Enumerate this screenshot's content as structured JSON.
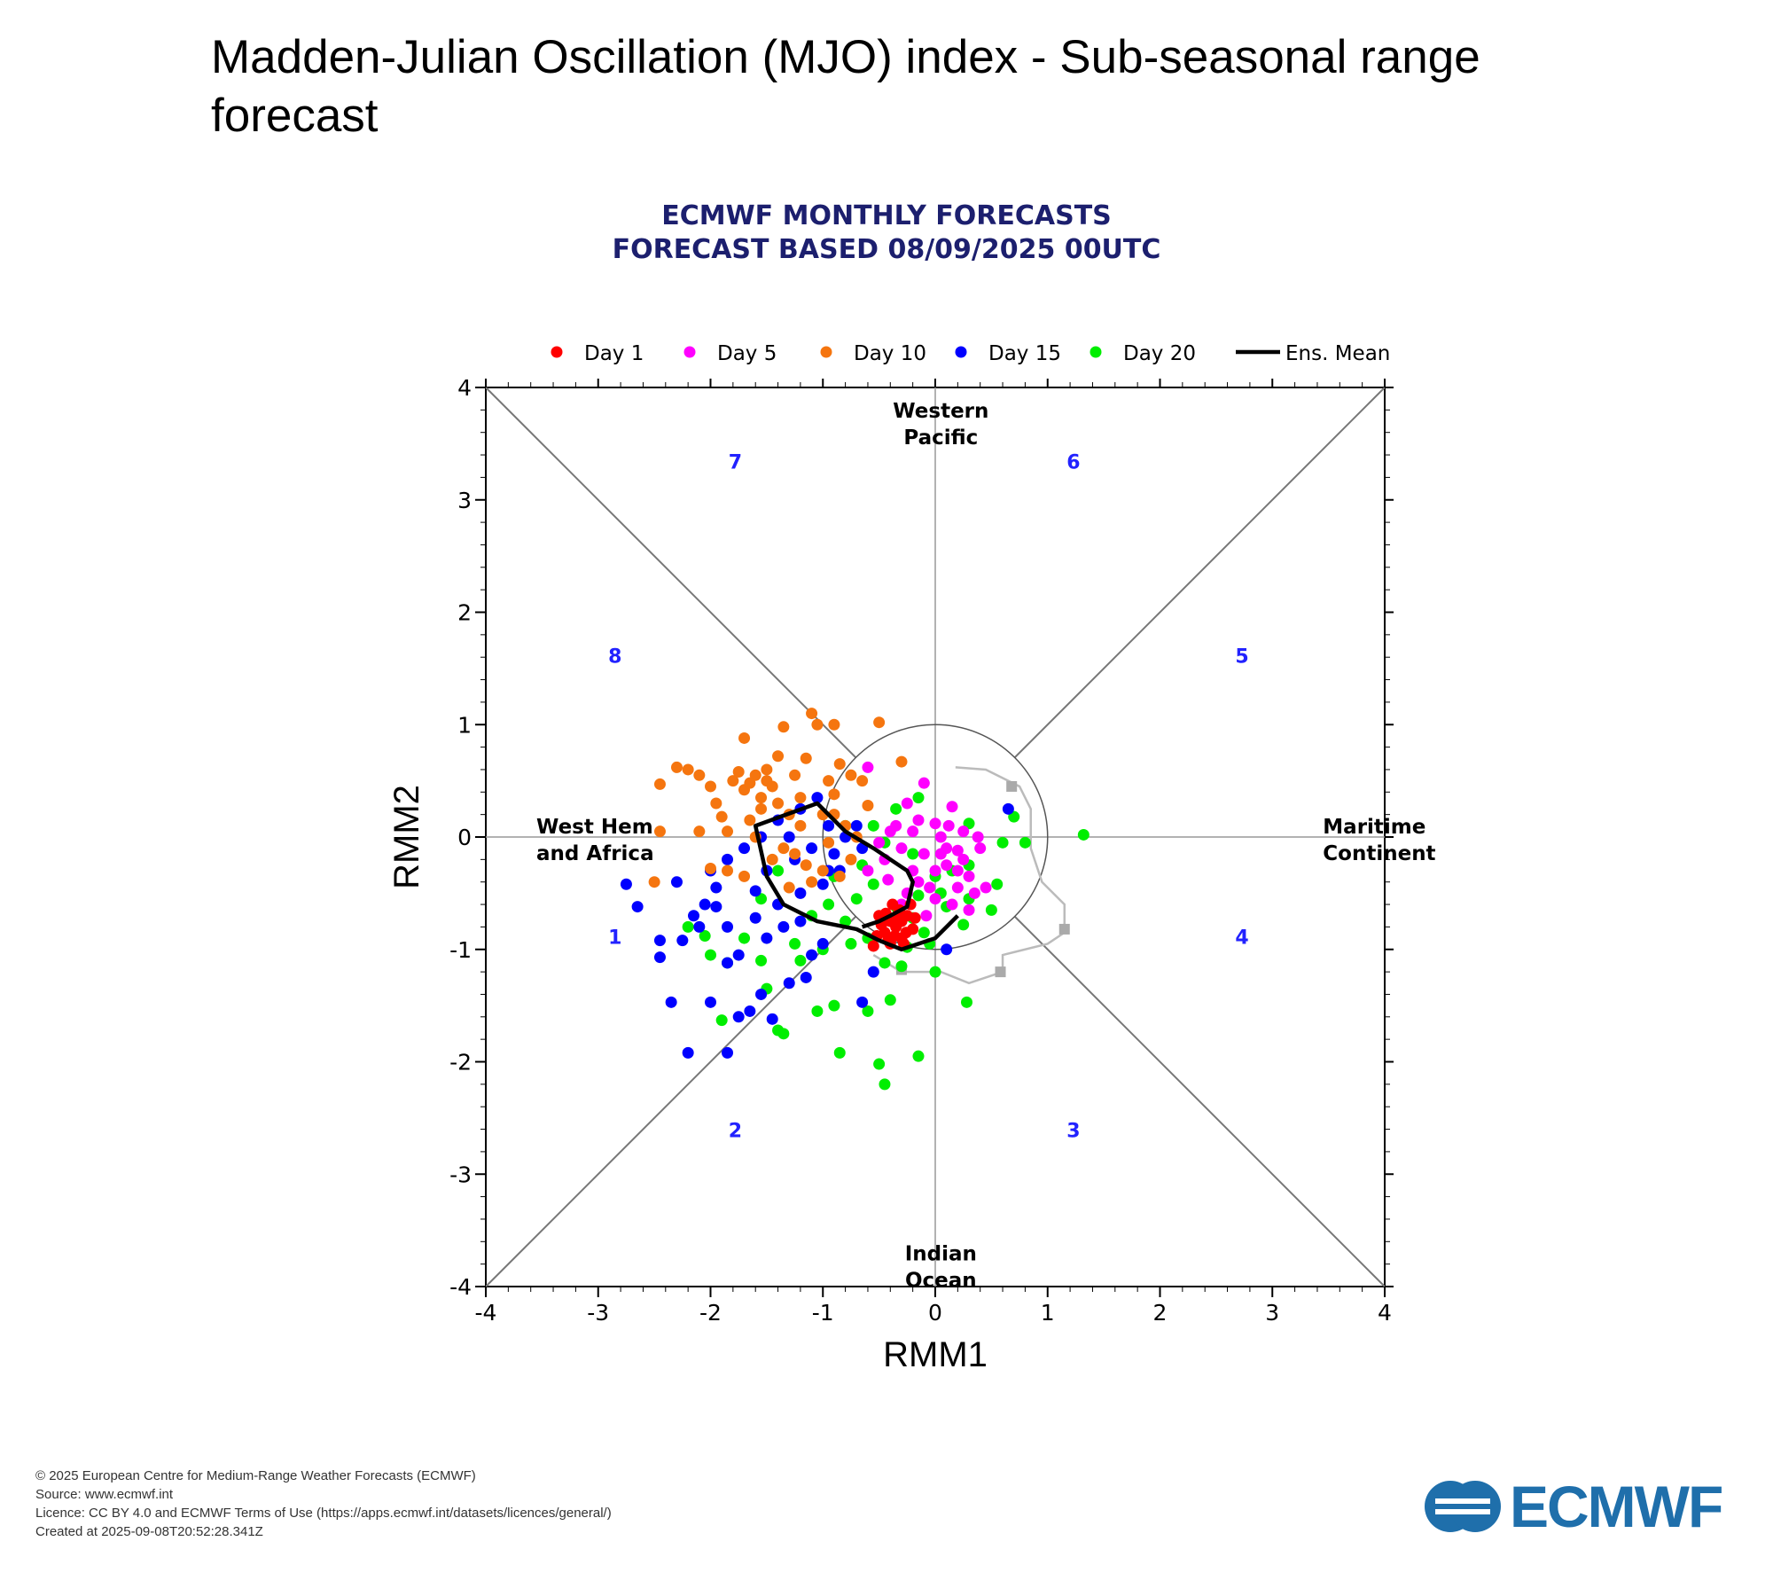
{
  "page": {
    "title": "Madden-Julian Oscillation (MJO) index - Sub-seasonal range forecast"
  },
  "footer": {
    "copyright": "© 2025 European Centre for Medium-Range Weather Forecasts (ECMWF)",
    "source": "Source: www.ecmwf.int",
    "licence": "Licence: CC BY 4.0 and ECMWF Terms of Use (https://apps.ecmwf.int/datasets/licences/general/)",
    "created": "Created at 2025-09-08T20:52:28.341Z"
  },
  "logo": {
    "text": "ECMWF",
    "color": "#1f6fab"
  },
  "chart_data": {
    "type": "scatter",
    "title": "ECMWF MONTHLY FORECASTS",
    "subtitle": "FORECAST  BASED 08/09/2025 00UTC",
    "xlabel": "RMM1",
    "ylabel": "RMM2",
    "xlim": [
      -4,
      4
    ],
    "ylim": [
      -4,
      4
    ],
    "xticks": [
      "-4",
      "-3",
      "-2",
      "-1",
      "0",
      "1",
      "2",
      "3",
      "4"
    ],
    "yticks": [
      "-4",
      "-3",
      "-2",
      "-1",
      "0",
      "1",
      "2",
      "3",
      "4"
    ],
    "legend_position": "top",
    "region_labels": [
      {
        "lines": [
          "Western",
          "Pacific"
        ],
        "x": 0.05,
        "y": 3.7
      },
      {
        "lines": [
          "Indian",
          "Ocean"
        ],
        "x": 0.05,
        "y": -3.8
      },
      {
        "lines": [
          "West Hem.",
          "and Africa"
        ],
        "x": -3.55,
        "y": 0.0
      },
      {
        "lines": [
          "Maritime",
          "Continent"
        ],
        "x": 3.45,
        "y": 0.0
      }
    ],
    "phase_labels": [
      {
        "label": "1",
        "x": -2.85,
        "y": -0.88
      },
      {
        "label": "2",
        "x": -1.78,
        "y": -2.6
      },
      {
        "label": "3",
        "x": 1.23,
        "y": -2.6
      },
      {
        "label": "4",
        "x": 2.73,
        "y": -0.88
      },
      {
        "label": "5",
        "x": 2.73,
        "y": 1.62
      },
      {
        "label": "6",
        "x": 1.23,
        "y": 3.35
      },
      {
        "label": "7",
        "x": -1.78,
        "y": 3.35
      },
      {
        "label": "8",
        "x": -2.85,
        "y": 1.62
      }
    ],
    "series": [
      {
        "name": "Day 1",
        "color": "#ff0000",
        "points": [
          [
            -0.55,
            -0.97
          ],
          [
            -0.45,
            -0.85
          ],
          [
            -0.4,
            -0.75
          ],
          [
            -0.35,
            -0.8
          ],
          [
            -0.3,
            -0.9
          ],
          [
            -0.25,
            -0.7
          ],
          [
            -0.2,
            -0.82
          ],
          [
            -0.5,
            -0.7
          ],
          [
            -0.42,
            -0.92
          ],
          [
            -0.32,
            -0.65
          ],
          [
            -0.28,
            -0.95
          ],
          [
            -0.38,
            -0.6
          ],
          [
            -0.22,
            -0.6
          ],
          [
            -0.48,
            -0.78
          ],
          [
            -0.36,
            -0.88
          ],
          [
            -0.3,
            -0.75
          ],
          [
            -0.44,
            -0.68
          ],
          [
            -0.26,
            -0.85
          ],
          [
            -0.34,
            -0.7
          ],
          [
            -0.4,
            -0.95
          ],
          [
            -0.18,
            -0.72
          ],
          [
            -0.52,
            -0.88
          ]
        ]
      },
      {
        "name": "Day 5",
        "color": "#ff00ff",
        "points": [
          [
            -0.6,
            0.62
          ],
          [
            -0.1,
            0.48
          ],
          [
            0.15,
            0.27
          ],
          [
            -0.25,
            0.3
          ],
          [
            0.0,
            0.12
          ],
          [
            -0.4,
            0.05
          ],
          [
            0.1,
            -0.1
          ],
          [
            0.25,
            -0.2
          ],
          [
            -0.2,
            -0.3
          ],
          [
            -0.05,
            -0.45
          ],
          [
            0.2,
            -0.45
          ],
          [
            0.35,
            -0.5
          ],
          [
            -0.3,
            -0.1
          ],
          [
            0.05,
            0.0
          ],
          [
            -0.15,
            0.15
          ],
          [
            0.4,
            -0.1
          ],
          [
            0.3,
            -0.35
          ],
          [
            -0.45,
            -0.2
          ],
          [
            -0.35,
            0.1
          ],
          [
            0.15,
            -0.6
          ],
          [
            -0.1,
            -0.15
          ],
          [
            0.0,
            -0.3
          ],
          [
            0.25,
            0.05
          ],
          [
            -0.5,
            -0.05
          ],
          [
            -0.25,
            -0.5
          ],
          [
            0.1,
            -0.25
          ],
          [
            -0.6,
            -0.3
          ],
          [
            0.45,
            -0.45
          ],
          [
            0.2,
            -0.12
          ],
          [
            0.0,
            -0.55
          ],
          [
            -0.2,
            0.05
          ],
          [
            0.38,
            0.0
          ],
          [
            -0.42,
            -0.38
          ],
          [
            0.12,
            0.1
          ],
          [
            -0.08,
            -0.7
          ],
          [
            0.3,
            -0.65
          ],
          [
            -0.3,
            -0.6
          ],
          [
            0.05,
            -0.15
          ],
          [
            -0.15,
            -0.4
          ],
          [
            0.2,
            -0.3
          ]
        ]
      },
      {
        "name": "Day 10",
        "color": "#f5750f",
        "points": [
          [
            -1.1,
            1.1
          ],
          [
            -1.05,
            1.0
          ],
          [
            -0.9,
            1.0
          ],
          [
            -0.5,
            1.02
          ],
          [
            -0.3,
            0.67
          ],
          [
            -1.7,
            0.88
          ],
          [
            -1.6,
            0.55
          ],
          [
            -1.5,
            0.5
          ],
          [
            -1.35,
            0.98
          ],
          [
            -1.15,
            0.7
          ],
          [
            -2.1,
            0.55
          ],
          [
            -2.3,
            0.62
          ],
          [
            -2.45,
            0.47
          ],
          [
            -2.2,
            0.6
          ],
          [
            -1.8,
            0.5
          ],
          [
            -1.7,
            0.42
          ],
          [
            -1.55,
            0.35
          ],
          [
            -1.45,
            0.45
          ],
          [
            -1.4,
            0.3
          ],
          [
            -1.3,
            0.2
          ],
          [
            -1.2,
            0.1
          ],
          [
            -1.0,
            0.2
          ],
          [
            -0.8,
            0.1
          ],
          [
            -0.9,
            0.38
          ],
          [
            -0.95,
            0.5
          ],
          [
            -0.75,
            0.55
          ],
          [
            -0.85,
            0.65
          ],
          [
            -2.45,
            0.05
          ],
          [
            -2.1,
            0.05
          ],
          [
            -1.85,
            0.05
          ],
          [
            -1.6,
            0.0
          ],
          [
            -1.35,
            -0.1
          ],
          [
            -1.15,
            -0.25
          ],
          [
            -0.95,
            -0.05
          ],
          [
            -0.7,
            0.0
          ],
          [
            -1.25,
            -0.15
          ],
          [
            -1.0,
            -0.3
          ],
          [
            -1.45,
            -0.2
          ],
          [
            -1.85,
            -0.3
          ],
          [
            -2.0,
            -0.28
          ],
          [
            -2.5,
            -0.4
          ],
          [
            -1.7,
            -0.35
          ],
          [
            -1.3,
            -0.45
          ],
          [
            -1.1,
            -0.4
          ],
          [
            -0.85,
            -0.35
          ],
          [
            -0.75,
            -0.2
          ],
          [
            -1.65,
            0.15
          ],
          [
            -1.55,
            0.25
          ],
          [
            -1.95,
            0.3
          ],
          [
            -1.2,
            0.35
          ],
          [
            -0.6,
            0.28
          ],
          [
            -2.0,
            0.45
          ],
          [
            -1.75,
            0.58
          ],
          [
            -1.4,
            0.72
          ],
          [
            -1.25,
            0.55
          ],
          [
            -0.65,
            0.5
          ],
          [
            -0.9,
            0.2
          ],
          [
            -1.5,
            0.6
          ],
          [
            -1.65,
            0.48
          ],
          [
            -1.9,
            0.18
          ]
        ]
      },
      {
        "name": "Day 15",
        "color": "#0000ff",
        "points": [
          [
            -2.75,
            -0.42
          ],
          [
            -2.65,
            -0.62
          ],
          [
            -2.45,
            -0.92
          ],
          [
            -2.45,
            -1.07
          ],
          [
            -2.3,
            -0.4
          ],
          [
            -2.25,
            -0.92
          ],
          [
            -2.35,
            -1.47
          ],
          [
            -2.2,
            -1.92
          ],
          [
            -2.1,
            -0.8
          ],
          [
            -2.0,
            -1.47
          ],
          [
            -1.95,
            -0.62
          ],
          [
            -1.85,
            -1.92
          ],
          [
            -1.75,
            -1.6
          ],
          [
            -1.65,
            -1.55
          ],
          [
            -1.55,
            -1.4
          ],
          [
            -1.45,
            -1.62
          ],
          [
            -1.3,
            -1.3
          ],
          [
            -1.15,
            -1.25
          ],
          [
            -1.1,
            -1.05
          ],
          [
            -1.0,
            -0.95
          ],
          [
            -0.65,
            -1.47
          ],
          [
            -0.55,
            -1.2
          ],
          [
            -1.85,
            -1.12
          ],
          [
            -1.75,
            -1.05
          ],
          [
            -1.5,
            -0.9
          ],
          [
            -1.35,
            -0.8
          ],
          [
            -1.2,
            -0.75
          ],
          [
            -1.85,
            -0.8
          ],
          [
            -1.6,
            -0.72
          ],
          [
            -1.4,
            -0.6
          ],
          [
            -1.2,
            -0.5
          ],
          [
            -1.0,
            -0.42
          ],
          [
            -0.85,
            -0.3
          ],
          [
            -2.05,
            -0.6
          ],
          [
            -1.95,
            -0.45
          ],
          [
            -1.85,
            -0.2
          ],
          [
            -1.7,
            -0.1
          ],
          [
            -1.55,
            0.0
          ],
          [
            -1.4,
            0.15
          ],
          [
            -1.2,
            0.25
          ],
          [
            -1.05,
            0.35
          ],
          [
            -0.95,
            0.1
          ],
          [
            -0.8,
            0.0
          ],
          [
            -0.7,
            0.1
          ],
          [
            -0.65,
            -0.1
          ],
          [
            -2.15,
            -0.7
          ],
          [
            -2.0,
            -0.3
          ],
          [
            -1.6,
            -0.48
          ],
          [
            -1.25,
            -0.2
          ],
          [
            -1.1,
            -0.1
          ],
          [
            -0.95,
            -0.3
          ],
          [
            0.1,
            -1.0
          ],
          [
            0.65,
            0.25
          ],
          [
            -1.5,
            -0.3
          ],
          [
            -1.3,
            0.0
          ],
          [
            -0.9,
            -0.15
          ]
        ]
      },
      {
        "name": "Day 20",
        "color": "#00ee00",
        "points": [
          [
            -0.45,
            -2.2
          ],
          [
            -0.5,
            -2.02
          ],
          [
            -0.15,
            -1.95
          ],
          [
            -0.85,
            -1.92
          ],
          [
            -1.35,
            -1.75
          ],
          [
            -1.4,
            -1.72
          ],
          [
            -1.9,
            -1.63
          ],
          [
            -1.05,
            -1.55
          ],
          [
            -0.9,
            -1.5
          ],
          [
            -0.6,
            -1.55
          ],
          [
            -0.4,
            -1.45
          ],
          [
            0.28,
            -1.47
          ],
          [
            -1.5,
            -1.35
          ],
          [
            -2.2,
            -0.8
          ],
          [
            -2.05,
            -0.88
          ],
          [
            -2.0,
            -1.05
          ],
          [
            -1.85,
            -1.12
          ],
          [
            -1.55,
            -1.1
          ],
          [
            -1.2,
            -1.1
          ],
          [
            -1.0,
            -1.0
          ],
          [
            -0.75,
            -0.95
          ],
          [
            -0.6,
            -0.9
          ],
          [
            -0.45,
            -1.12
          ],
          [
            -0.3,
            -1.15
          ],
          [
            0.0,
            -1.2
          ],
          [
            -0.25,
            -0.98
          ],
          [
            -0.05,
            -0.95
          ],
          [
            0.25,
            -0.78
          ],
          [
            0.5,
            -0.65
          ],
          [
            0.1,
            -0.62
          ],
          [
            -0.15,
            -0.52
          ],
          [
            0.3,
            -0.55
          ],
          [
            0.55,
            -0.42
          ],
          [
            0.3,
            -0.25
          ],
          [
            0.0,
            -0.35
          ],
          [
            -0.2,
            -0.15
          ],
          [
            -0.45,
            -0.05
          ],
          [
            -0.8,
            0.1
          ],
          [
            -0.55,
            0.1
          ],
          [
            -0.35,
            0.25
          ],
          [
            -0.15,
            0.35
          ],
          [
            0.3,
            0.12
          ],
          [
            0.6,
            -0.05
          ],
          [
            0.8,
            -0.05
          ],
          [
            0.7,
            0.18
          ],
          [
            1.32,
            0.02
          ],
          [
            -1.55,
            -0.55
          ],
          [
            -1.4,
            -0.3
          ],
          [
            -1.1,
            -0.7
          ],
          [
            -0.95,
            -0.6
          ],
          [
            -0.8,
            -0.75
          ],
          [
            -0.7,
            -0.55
          ],
          [
            -0.55,
            -0.42
          ],
          [
            -0.35,
            -0.62
          ],
          [
            -0.2,
            -0.72
          ],
          [
            0.15,
            -0.3
          ],
          [
            -0.65,
            -0.25
          ],
          [
            -0.9,
            -0.35
          ],
          [
            -1.25,
            -0.95
          ],
          [
            -0.1,
            -0.85
          ],
          [
            -1.7,
            -0.9
          ],
          [
            0.05,
            -0.5
          ]
        ]
      }
    ],
    "ensemble_mean": {
      "name": "Ens. Mean",
      "color": "#000000",
      "points": [
        [
          -0.65,
          -0.8
        ],
        [
          -0.5,
          -0.75
        ],
        [
          -0.4,
          -0.7
        ],
        [
          -0.25,
          -0.62
        ],
        [
          -0.2,
          -0.4
        ],
        [
          -0.25,
          -0.3
        ],
        [
          -0.55,
          -0.1
        ],
        [
          -0.8,
          0.05
        ],
        [
          -1.05,
          0.3
        ],
        [
          -1.6,
          0.1
        ],
        [
          -1.5,
          -0.35
        ],
        [
          -1.35,
          -0.6
        ],
        [
          -1.05,
          -0.75
        ],
        [
          -0.7,
          -0.82
        ],
        [
          -0.5,
          -0.92
        ],
        [
          -0.3,
          -1.0
        ],
        [
          0.0,
          -0.9
        ],
        [
          0.2,
          -0.7
        ]
      ]
    },
    "analysis_path": {
      "color": "#bbbbbb",
      "points": [
        [
          0.18,
          0.62
        ],
        [
          0.45,
          0.6
        ],
        [
          0.75,
          0.45
        ],
        [
          0.85,
          0.25
        ],
        [
          0.85,
          -0.1
        ],
        [
          0.95,
          -0.4
        ],
        [
          1.15,
          -0.6
        ],
        [
          1.15,
          -0.85
        ],
        [
          1.0,
          -0.95
        ],
        [
          0.6,
          -1.05
        ],
        [
          0.6,
          -1.2
        ],
        [
          0.3,
          -1.3
        ],
        [
          0.05,
          -1.2
        ],
        [
          -0.3,
          -1.2
        ],
        [
          -0.55,
          -1.05
        ]
      ]
    },
    "analysis_markers": [
      [
        0.68,
        0.45
      ],
      [
        1.15,
        -0.82
      ],
      [
        0.58,
        -1.2
      ],
      [
        -0.3,
        -1.18
      ]
    ],
    "legend": [
      {
        "label": "Day 1",
        "color": "#ff0000",
        "kind": "dot"
      },
      {
        "label": "Day 5",
        "color": "#ff00ff",
        "kind": "dot"
      },
      {
        "label": "Day 10",
        "color": "#f5750f",
        "kind": "dot"
      },
      {
        "label": "Day 15",
        "color": "#0000ff",
        "kind": "dot"
      },
      {
        "label": "Day 20",
        "color": "#00ee00",
        "kind": "dot"
      },
      {
        "label": "Ens. Mean",
        "color": "#000000",
        "kind": "line"
      }
    ],
    "grid": false
  }
}
